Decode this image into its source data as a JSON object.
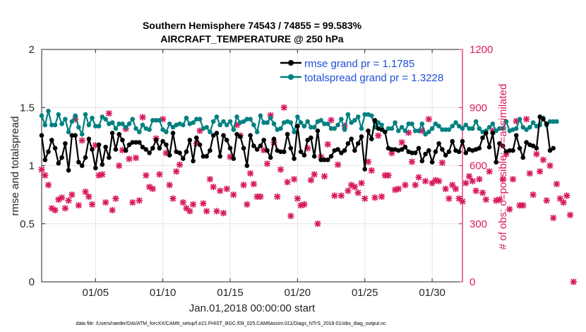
{
  "chart_data": {
    "type": "line",
    "title_line1": "Southern Hemisphere 74543 / 74855 = 99.583%",
    "title_line2": "AIRCRAFT_TEMPERATURE @ 250 hPa",
    "xlabel": "Jan.01,2018 00:00:00 start",
    "ylabel_left": "rmse and totalspread",
    "ylabel_right": "# of obs: o=possible; ×=assimilated",
    "footer": "data file: /Users/raeder/DAI/ATM_forcXX/CAM6_setup/f.e21.FHIST_BGC.f09_025.CAM6assim.011/Diags_NTrS_2018-01/obs_diag_output.nc",
    "xlim": [
      1.0,
      32.25
    ],
    "ylim_left": [
      0,
      2
    ],
    "ylim_right": [
      0,
      1200
    ],
    "x_ticks": [
      5,
      10,
      15,
      20,
      25,
      30
    ],
    "x_tick_labels": [
      "01/05",
      "01/10",
      "01/15",
      "01/20",
      "01/25",
      "01/30"
    ],
    "y_ticks_left": [
      0,
      0.5,
      1,
      1.5,
      2
    ],
    "y_tick_labels_left": [
      "0",
      "0.5",
      "1",
      "1.5",
      "2"
    ],
    "y_ticks_right": [
      0,
      300,
      600,
      900,
      1200
    ],
    "y_tick_labels_right": [
      "0",
      "300",
      "600",
      "900",
      "1200"
    ],
    "grid": true,
    "legend_position": "top-right",
    "colors": {
      "rmse": "#000000",
      "spread": "#008080",
      "obs": "#d81b60"
    },
    "series": [
      {
        "name": "rmse grand pr = 1.1785",
        "key": "rmse",
        "x_start": 1.0,
        "x_step": 0.25,
        "values": [
          1.26,
          1.05,
          1.12,
          1.22,
          1.15,
          1.02,
          1.07,
          1.19,
          0.96,
          1.26,
          1.26,
          1.03,
          1.0,
          1.07,
          1.23,
          1.14,
          0.98,
          1.18,
          1.01,
          1.16,
          1.07,
          1.28,
          1.14,
          1.27,
          1.22,
          1.13,
          1.18,
          1.2,
          1.2,
          1.2,
          1.16,
          1.14,
          1.11,
          1.15,
          1.22,
          1.15,
          1.21,
          1.18,
          1.09,
          1.28,
          1.12,
          1.11,
          1.06,
          1.12,
          1.22,
          1.04,
          1.24,
          1.18,
          1.08,
          1.08,
          1.13,
          1.26,
          1.28,
          1.08,
          1.26,
          1.22,
          1.15,
          1.06,
          1.27,
          1.25,
          1.15,
          1.0,
          1.26,
          1.17,
          1.14,
          1.17,
          1.22,
          1.13,
          1.07,
          1.23,
          1.13,
          1.12,
          1.12,
          1.27,
          1.15,
          1.06,
          1.34,
          1.12,
          1.09,
          1.22,
          1.24,
          1.08,
          1.3,
          1.05,
          1.05,
          1.05,
          1.08,
          1.13,
          1.14,
          1.11,
          1.13,
          1.19,
          1.23,
          1.13,
          1.19,
          1.25,
          0.97,
          1.3,
          1.23,
          1.39,
          1.32,
          1.31,
          1.29,
          1.15,
          1.14,
          1.14,
          1.13,
          1.14,
          1.16,
          1.12,
          1.11,
          1.11,
          1.15,
          1.04,
          1.1,
          1.13,
          1.03,
          1.12,
          1.19,
          1.14,
          1.09,
          1.12,
          1.21,
          1.13,
          1.12,
          1.21,
          1.11,
          1.14,
          1.13,
          1.14,
          1.15,
          1.24,
          1.28,
          1.16,
          1.28,
          1.03,
          1.19,
          1.17,
          1.12,
          1.13,
          1.13,
          1.26,
          1.15,
          1.07,
          1.2,
          1.18,
          1.17,
          1.15,
          1.42,
          1.4,
          1.36,
          1.13,
          1.15
        ]
      },
      {
        "name": "totalspread grand pr = 1.3228",
        "key": "spread",
        "x_start": 1.0,
        "x_step": 0.25,
        "values": [
          1.43,
          1.35,
          1.47,
          1.35,
          1.35,
          1.44,
          1.36,
          1.4,
          1.29,
          1.38,
          1.43,
          1.33,
          1.27,
          1.44,
          1.35,
          1.41,
          1.34,
          1.34,
          1.42,
          1.4,
          1.36,
          1.37,
          1.32,
          1.36,
          1.36,
          1.33,
          1.36,
          1.4,
          1.32,
          1.29,
          1.35,
          1.32,
          1.31,
          1.39,
          1.39,
          1.39,
          1.31,
          1.29,
          1.36,
          1.33,
          1.35,
          1.36,
          1.35,
          1.41,
          1.36,
          1.37,
          1.4,
          1.4,
          1.32,
          1.33,
          1.29,
          1.38,
          1.42,
          1.35,
          1.38,
          1.35,
          1.38,
          1.31,
          1.42,
          1.37,
          1.38,
          1.4,
          1.4,
          1.35,
          1.29,
          1.43,
          1.37,
          1.37,
          1.41,
          1.36,
          1.31,
          1.32,
          1.37,
          1.38,
          1.37,
          1.29,
          1.42,
          1.37,
          1.34,
          1.38,
          1.33,
          1.33,
          1.38,
          1.39,
          1.36,
          1.36,
          1.32,
          1.32,
          1.35,
          1.4,
          1.31,
          1.44,
          1.37,
          1.39,
          1.42,
          1.32,
          1.44,
          1.44,
          1.43,
          1.33,
          1.37,
          1.35,
          1.29,
          1.32,
          1.32,
          1.37,
          1.3,
          1.33,
          1.3,
          1.36,
          1.36,
          1.3,
          1.3,
          1.36,
          1.27,
          1.29,
          1.32,
          1.36,
          1.34,
          1.31,
          1.31,
          1.31,
          1.34,
          1.37,
          1.34,
          1.32,
          1.35,
          1.32,
          1.32,
          1.38,
          1.32,
          1.29,
          1.3,
          1.33,
          1.36,
          1.3,
          1.32,
          1.32,
          1.38,
          1.3,
          1.31,
          1.32,
          1.4,
          1.33,
          1.31,
          1.33,
          1.37,
          1.34,
          1.35,
          1.41,
          1.35,
          1.38,
          1.38,
          1.38
        ]
      },
      {
        "name": "obs assimilated",
        "key": "obs",
        "x_start": 1.0,
        "x_step": 0.25,
        "values": [
          580,
          550,
          500,
          380,
          370,
          425,
          435,
          380,
          420,
          450,
          840,
          395,
          730,
          465,
          440,
          400,
          705,
          550,
          555,
          410,
          870,
          370,
          430,
          600,
          680,
          790,
          635,
          410,
          640,
          420,
          850,
          550,
          490,
          480,
          740,
          555,
          840,
          665,
          500,
          430,
          570,
          605,
          410,
          380,
          365,
          400,
          715,
          780,
          405,
          365,
          530,
          490,
          365,
          470,
          355,
          480,
          645,
          450,
          810,
          755,
          500,
          400,
          560,
          505,
          440,
          440,
          680,
          610,
          860,
          720,
          440,
          580,
          900,
          515,
          340,
          530,
          430,
          395,
          400,
          690,
          525,
          555,
          300,
          645,
          545,
          710,
          835,
          445,
          605,
          445,
          805,
          470,
          500,
          490,
          460,
          510,
          430,
          620,
          575,
          435,
          755,
          440,
          550,
          550,
          665,
          475,
          480,
          720,
          500,
          770,
          620,
          500,
          540,
          780,
          520,
          840,
          510,
          525,
          520,
          615,
          480,
          430,
          500,
          480,
          430,
          415,
          510,
          545,
          520,
          470,
          530,
          460,
          425,
          570,
          780,
          420,
          425,
          530,
          660,
          375,
          530,
          830,
          395,
          395,
          840,
          560,
          450,
          660,
          570,
          630,
          420,
          600,
          330,
          505,
          430,
          410,
          445,
          345,
          0
        ]
      }
    ]
  }
}
